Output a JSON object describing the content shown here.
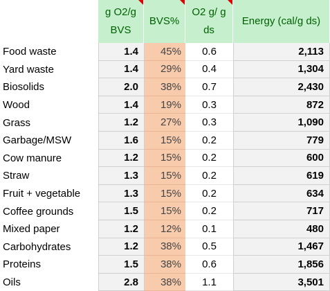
{
  "headers": {
    "col1": [
      "g O2/g",
      "BVS"
    ],
    "col2": "BVS%",
    "col3": [
      "O2 g/ g",
      "ds"
    ],
    "col4": "Energy (cal/g ds)"
  },
  "rows": [
    {
      "name": "Food waste",
      "o2_bvs": "1.4",
      "bvs_pct": "45%",
      "o2_ds": "0.6",
      "energy": "2,113"
    },
    {
      "name": "Yard waste",
      "o2_bvs": "1.4",
      "bvs_pct": "29%",
      "o2_ds": "0.4",
      "energy": "1,304"
    },
    {
      "name": "Biosolids",
      "o2_bvs": "2.0",
      "bvs_pct": "38%",
      "o2_ds": "0.7",
      "energy": "2,430"
    },
    {
      "name": "Wood",
      "o2_bvs": "1.4",
      "bvs_pct": "19%",
      "o2_ds": "0.3",
      "energy": "872"
    },
    {
      "name": "Grass",
      "o2_bvs": "1.2",
      "bvs_pct": "27%",
      "o2_ds": "0.3",
      "energy": "1,090"
    },
    {
      "name": "Garbage/MSW",
      "o2_bvs": "1.6",
      "bvs_pct": "15%",
      "o2_ds": "0.2",
      "energy": "779"
    },
    {
      "name": "Cow manure",
      "o2_bvs": "1.2",
      "bvs_pct": "15%",
      "o2_ds": "0.2",
      "energy": "600"
    },
    {
      "name": "Straw",
      "o2_bvs": "1.3",
      "bvs_pct": "15%",
      "o2_ds": "0.2",
      "energy": "619"
    },
    {
      "name": "Fruit + vegetable",
      "o2_bvs": "1.3",
      "bvs_pct": "15%",
      "o2_ds": "0.2",
      "energy": "634"
    },
    {
      "name": "Coffee grounds",
      "o2_bvs": "1.5",
      "bvs_pct": "15%",
      "o2_ds": "0.2",
      "energy": "717"
    },
    {
      "name": "Mixed paper",
      "o2_bvs": "1.2",
      "bvs_pct": "12%",
      "o2_ds": "0.1",
      "energy": "480"
    },
    {
      "name": "Carbohydrates",
      "o2_bvs": "1.2",
      "bvs_pct": "38%",
      "o2_ds": "0.5",
      "energy": "1,467"
    },
    {
      "name": "Proteins",
      "o2_bvs": "1.5",
      "bvs_pct": "38%",
      "o2_ds": "0.6",
      "energy": "1,856"
    },
    {
      "name": "Oils",
      "o2_bvs": "2.8",
      "bvs_pct": "38%",
      "o2_ds": "1.1",
      "energy": "3,501"
    }
  ],
  "colors": {
    "header_fill": "#c6efce",
    "header_text": "#006100",
    "bvs_fill": "#f8cbad",
    "shaded_fill": "#f2f2f2",
    "comment_flag": "#e00000"
  }
}
